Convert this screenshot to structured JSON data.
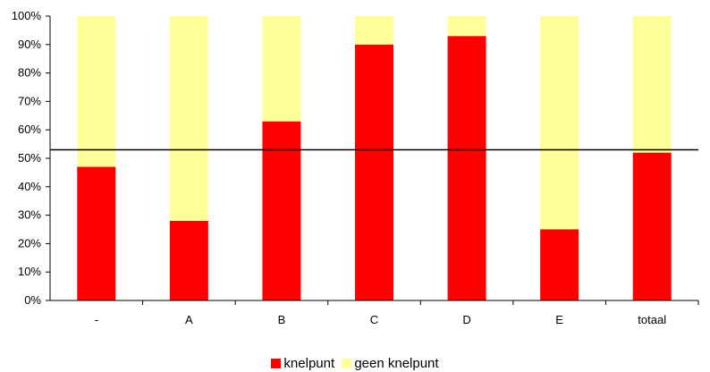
{
  "chart_data": {
    "type": "bar",
    "stacked": true,
    "title": "",
    "xlabel": "",
    "ylabel": "",
    "categories": [
      "-",
      "A",
      "B",
      "C",
      "D",
      "E",
      "totaal"
    ],
    "series": [
      {
        "name": "knelpunt",
        "color": "#ff0000",
        "values": [
          47,
          28,
          63,
          90,
          93,
          25,
          52
        ]
      },
      {
        "name": "geen knelpunt",
        "color": "#ffff99",
        "values": [
          53,
          72,
          37,
          10,
          7,
          75,
          48
        ]
      }
    ],
    "reference_line": 53,
    "ylim": [
      0,
      100
    ],
    "yticks": [
      "0%",
      "10%",
      "20%",
      "30%",
      "40%",
      "50%",
      "60%",
      "70%",
      "80%",
      "90%",
      "100%"
    ],
    "grid": false,
    "legend_position": "bottom"
  }
}
